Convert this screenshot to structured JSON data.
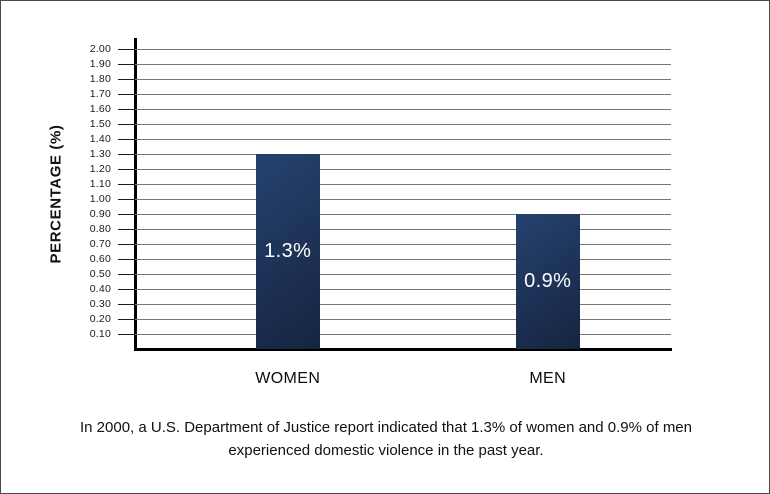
{
  "caption": {
    "line1": "In 2000, a U.S. Department of Justice report indicated that 1.3% of women and 0.9% of men",
    "line2": "experienced domestic violence in the past year."
  },
  "chart_data": {
    "type": "bar",
    "categories": [
      "WOMEN",
      "MEN"
    ],
    "values": [
      1.3,
      0.9
    ],
    "value_labels": [
      "1.3%",
      "0.9%"
    ],
    "title": "",
    "xlabel": "",
    "ylabel": "PERCENTAGE (%)",
    "ylim": [
      0,
      2.0
    ],
    "ytick_step": 0.1,
    "ytick_labels": [
      "0.10",
      "0.20",
      "0.30",
      "0.40",
      "0.50",
      "0.60",
      "0.70",
      "0.80",
      "0.90",
      "1.00",
      "1.10",
      "1.20",
      "1.30",
      "1.40",
      "1.50",
      "1.60",
      "1.70",
      "1.80",
      "1.90",
      "2.00"
    ],
    "grid": true,
    "legend": "none",
    "colors": {
      "bar_gradient_top": "#25426f",
      "bar_gradient_bottom": "#162440",
      "bar_label_text": "#ffffff",
      "axis": "#000000",
      "gridline": "#757575",
      "text": "#111111"
    }
  }
}
